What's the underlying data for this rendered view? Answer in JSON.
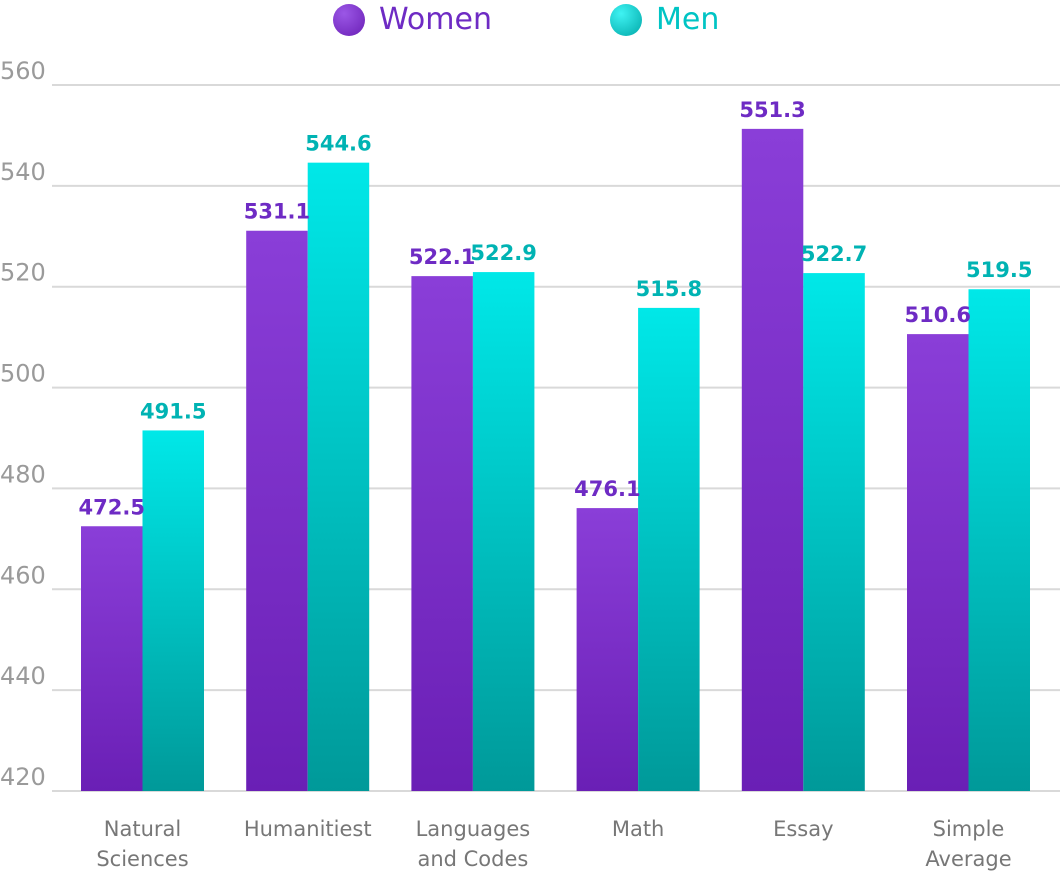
{
  "chart_data": {
    "type": "bar",
    "categories": [
      [
        "Natural",
        "Sciences"
      ],
      [
        "Humanitiest"
      ],
      [
        "Languages",
        "and Codes"
      ],
      [
        "Math"
      ],
      [
        "Essay"
      ],
      [
        "Simple",
        "Average"
      ]
    ],
    "series": [
      {
        "name": "Women",
        "values": [
          472.5,
          531.1,
          522.1,
          476.1,
          551.3,
          510.6
        ],
        "labels": [
          "472.5",
          "531.1",
          "522.1",
          "476.1",
          "551.3",
          "510.6"
        ],
        "color": "#7b2fcf",
        "gradient": [
          "#8a3ed8",
          "#6a1fb5"
        ],
        "label_color": "#6e2bc4"
      },
      {
        "name": "Men",
        "values": [
          491.5,
          544.6,
          522.9,
          515.8,
          522.7,
          519.5
        ],
        "labels": [
          "491.5",
          "544.6",
          "522.9",
          "515.8",
          "522.7",
          "519.5"
        ],
        "color": "#00c9c9",
        "gradient": [
          "#00e8e8",
          "#009999"
        ],
        "label_color": "#00b3b3"
      }
    ],
    "y_ticks": [
      "420",
      "440",
      "460",
      "480",
      "500",
      "520",
      "540",
      "560"
    ],
    "ylim": [
      420,
      560
    ],
    "grid": true,
    "legend_position": "top-center",
    "title": "",
    "xlabel": "",
    "ylabel": ""
  }
}
